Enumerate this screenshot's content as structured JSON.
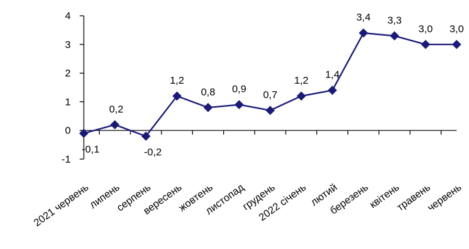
{
  "chart_data": {
    "type": "line",
    "title": "",
    "xlabel": "",
    "ylabel": "",
    "ylim": [
      -1,
      4
    ],
    "yticks": [
      -1,
      0,
      1,
      2,
      3,
      4
    ],
    "grid": false,
    "legend": "none",
    "categories": [
      "2021 червень",
      "липень",
      "серпень",
      "вересень",
      "жовтень",
      "листопад",
      "грудень",
      "2022 січень",
      "лютий",
      "березень",
      "квітень",
      "травень",
      "червень"
    ],
    "series": [
      {
        "values": [
          -0.1,
          0.2,
          -0.2,
          1.2,
          0.8,
          0.9,
          0.7,
          1.2,
          1.4,
          3.4,
          3.3,
          3.0,
          3.0
        ],
        "labels": [
          "-0,1",
          "0,2",
          "-0,2",
          "1,2",
          "0,8",
          "0,9",
          "0,7",
          "1,2",
          "1,4",
          "3,4",
          "3,3",
          "3,0",
          "3,0"
        ],
        "color": "#1a1a7a",
        "marker": "diamond"
      }
    ],
    "axis_color": "#000000"
  }
}
